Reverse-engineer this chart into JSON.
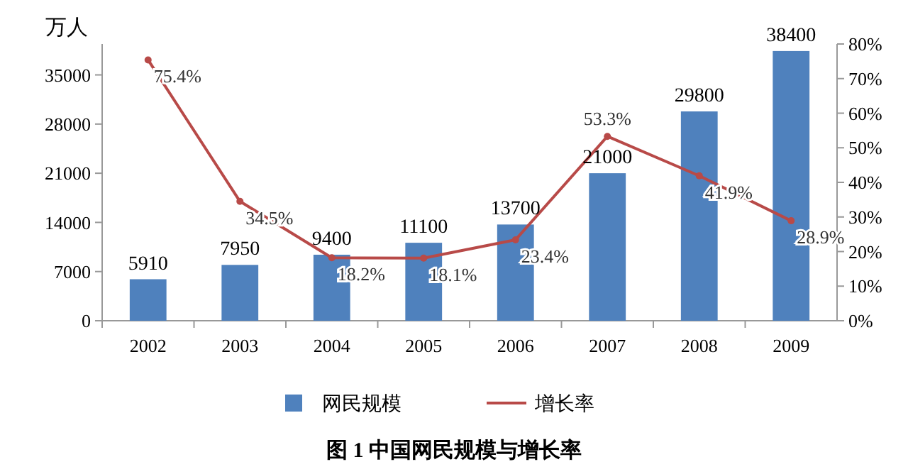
{
  "chart_data": {
    "type": "bar",
    "title": "图 1 中国网民规模与增长率",
    "ylabel": "万人",
    "categories": [
      "2002",
      "2003",
      "2004",
      "2005",
      "2006",
      "2007",
      "2008",
      "2009"
    ],
    "series": [
      {
        "name": "网民规模",
        "color": "#4f81bd",
        "values": [
          5910,
          7950,
          9400,
          11100,
          13700,
          21000,
          29800,
          38400
        ],
        "value_labels": [
          "5910",
          "7950",
          "9400",
          "11100",
          "13700",
          "21000",
          "29800",
          "38400"
        ]
      },
      {
        "name": "增长率",
        "type": "line",
        "axis": "y2",
        "color": "#b84a48",
        "marker": "circle",
        "values": [
          75.4,
          34.5,
          18.2,
          18.1,
          23.4,
          53.3,
          41.9,
          28.9
        ],
        "value_labels": [
          "75.4%",
          "34.5%",
          "18.2%",
          "18.1%",
          "23.4%",
          "53.3%",
          "41.9%",
          "28.9%"
        ]
      }
    ],
    "ylim": [
      0,
      39400
    ],
    "yticks": [
      0,
      7000,
      14000,
      21000,
      28000,
      35000
    ],
    "y2lim": [
      0,
      80
    ],
    "y2ticks": [
      {
        "value": 0,
        "label": "0%"
      },
      {
        "value": 10,
        "label": "10%"
      },
      {
        "value": 20,
        "label": "20%"
      },
      {
        "value": 30,
        "label": "30%"
      },
      {
        "value": 40,
        "label": "40%"
      },
      {
        "value": 50,
        "label": "50%"
      },
      {
        "value": 60,
        "label": "60%"
      },
      {
        "value": 70,
        "label": "70%"
      },
      {
        "value": 80,
        "label": "80%"
      }
    ],
    "grid": false,
    "legend": "bottom"
  }
}
